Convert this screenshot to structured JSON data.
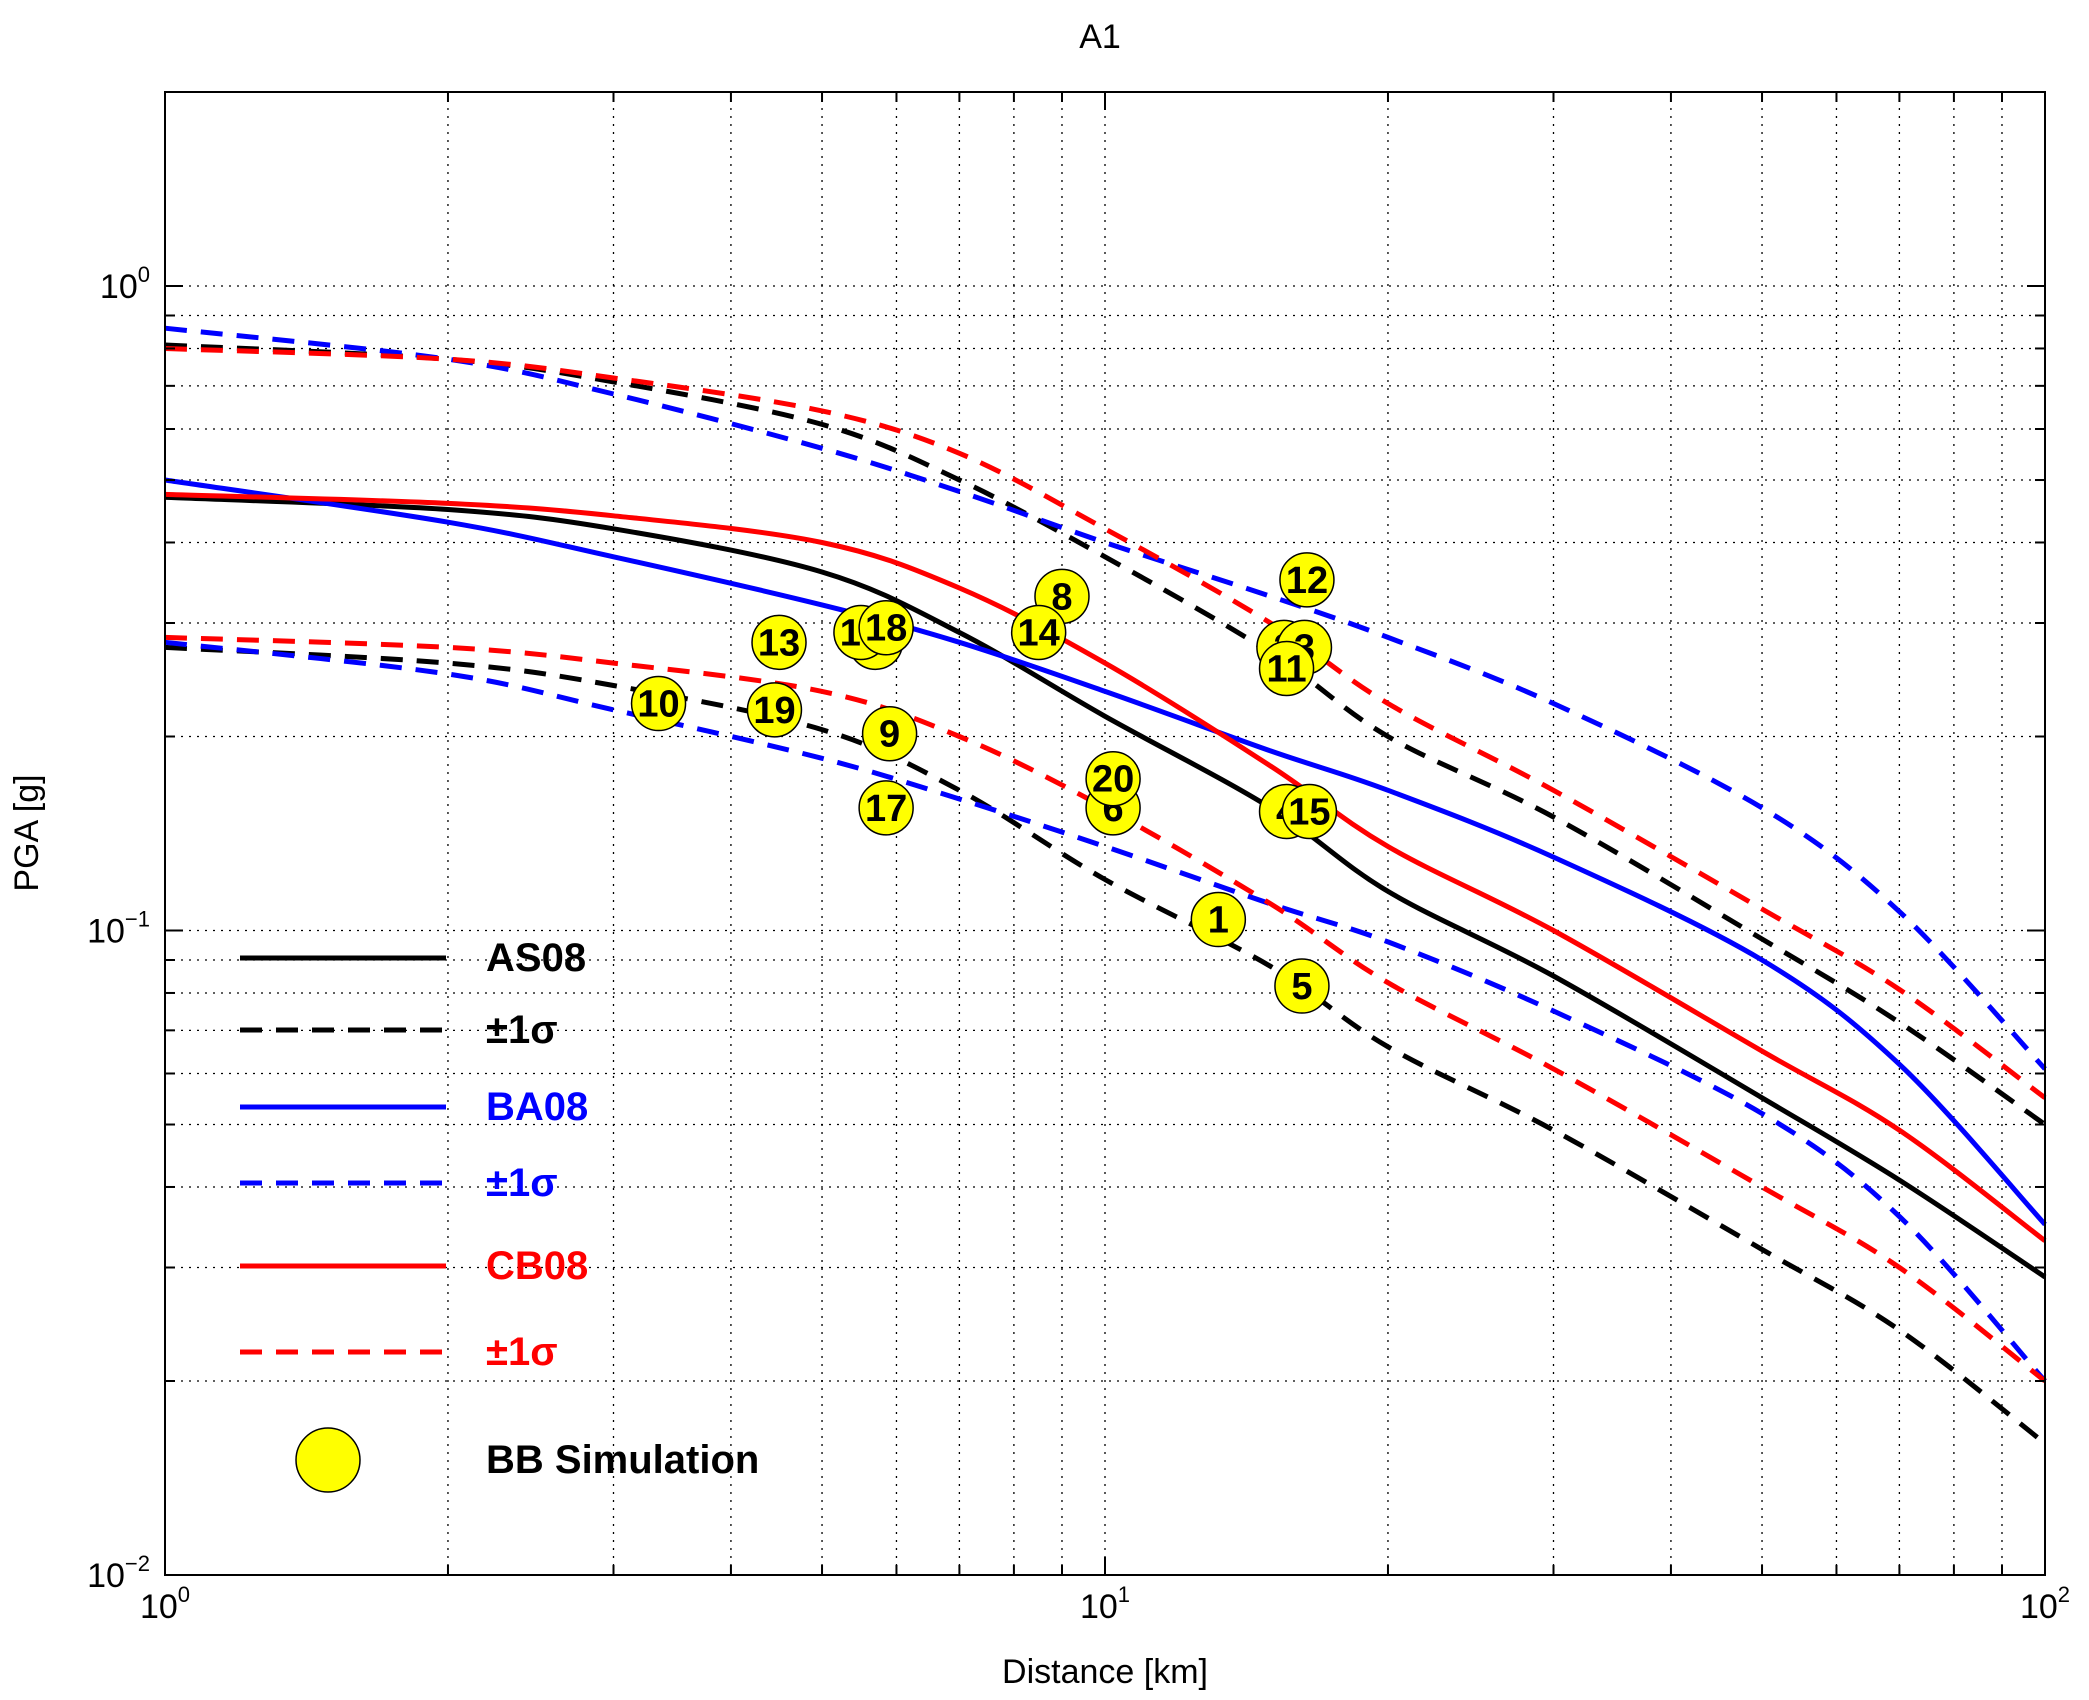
{
  "chart_data": {
    "type": "line",
    "title": "A1",
    "xlabel": "Distance [km]",
    "ylabel": "PGA [g]",
    "xscale": "log",
    "yscale": "log",
    "xlim": [
      1,
      100
    ],
    "ylim": [
      0.01,
      2
    ],
    "grid": true,
    "x_ticks": [
      {
        "base": "10",
        "exp": "0"
      },
      {
        "base": "10",
        "exp": "1"
      },
      {
        "base": "10",
        "exp": "2"
      }
    ],
    "y_ticks": [
      {
        "base": "10",
        "exp": "−2"
      },
      {
        "base": "10",
        "exp": "−1"
      },
      {
        "base": "10",
        "exp": "0"
      }
    ],
    "legend_position": "bottom-left",
    "legend": [
      {
        "label": "AS08",
        "color": "#000000",
        "style": "solid"
      },
      {
        "label": "±1σ",
        "color": "#000000",
        "style": "dashed"
      },
      {
        "label": "BA08",
        "color": "#0000ff",
        "style": "solid"
      },
      {
        "label": "±1σ",
        "color": "#0000ff",
        "style": "dashed"
      },
      {
        "label": "CB08",
        "color": "#ff0000",
        "style": "solid"
      },
      {
        "label": "±1σ",
        "color": "#ff0000",
        "style": "dashed"
      },
      {
        "label": "BB Simulation",
        "color": "#ffff00",
        "style": "marker"
      }
    ],
    "x": [
      1,
      2,
      3,
      5,
      7,
      10,
      15,
      20,
      30,
      50,
      70,
      100
    ],
    "series": [
      {
        "name": "AS08",
        "color": "#000000",
        "style": "solid",
        "values": [
          0.47,
          0.45,
          0.42,
          0.36,
          0.29,
          0.215,
          0.155,
          0.115,
          0.085,
          0.055,
          0.041,
          0.029
        ]
      },
      {
        "name": "±1σ",
        "color": "#000000",
        "style": "dashed",
        "values": [
          0.81,
          0.77,
          0.71,
          0.61,
          0.5,
          0.38,
          0.27,
          0.2,
          0.15,
          0.097,
          0.072,
          0.05
        ]
      },
      {
        "name": "±1σ",
        "color": "#000000",
        "style": "dashed",
        "values": [
          0.275,
          0.26,
          0.24,
          0.205,
          0.165,
          0.12,
          0.088,
          0.066,
          0.049,
          0.032,
          0.024,
          0.016
        ]
      },
      {
        "name": "BA08",
        "color": "#0000ff",
        "style": "solid",
        "values": [
          0.5,
          0.43,
          0.38,
          0.32,
          0.28,
          0.235,
          0.19,
          0.165,
          0.13,
          0.09,
          0.062,
          0.035
        ]
      },
      {
        "name": "±1σ",
        "color": "#0000ff",
        "style": "dashed",
        "values": [
          0.86,
          0.77,
          0.68,
          0.56,
          0.48,
          0.4,
          0.33,
          0.285,
          0.225,
          0.155,
          0.107,
          0.061
        ]
      },
      {
        "name": "±1σ",
        "color": "#0000ff",
        "style": "dashed",
        "values": [
          0.28,
          0.25,
          0.22,
          0.185,
          0.16,
          0.135,
          0.11,
          0.096,
          0.075,
          0.052,
          0.036,
          0.02
        ]
      },
      {
        "name": "CB08",
        "color": "#ff0000",
        "style": "solid",
        "values": [
          0.475,
          0.46,
          0.44,
          0.4,
          0.34,
          0.26,
          0.18,
          0.135,
          0.1,
          0.065,
          0.049,
          0.033
        ]
      },
      {
        "name": "±1σ",
        "color": "#ff0000",
        "style": "dashed",
        "values": [
          0.8,
          0.77,
          0.72,
          0.64,
          0.55,
          0.42,
          0.3,
          0.225,
          0.165,
          0.108,
          0.081,
          0.055
        ]
      },
      {
        "name": "±1σ",
        "color": "#ff0000",
        "style": "dashed",
        "values": [
          0.285,
          0.275,
          0.26,
          0.235,
          0.2,
          0.155,
          0.11,
          0.083,
          0.061,
          0.04,
          0.03,
          0.02
        ]
      }
    ],
    "simulation": {
      "name": "BB Simulation",
      "color": "#ffff00",
      "points": [
        {
          "label": "1",
          "x": 13.2,
          "y": 0.104
        },
        {
          "label": "2",
          "x": 15.5,
          "y": 0.275
        },
        {
          "label": "3",
          "x": 16.3,
          "y": 0.275
        },
        {
          "label": "4",
          "x": 15.6,
          "y": 0.153
        },
        {
          "label": "5",
          "x": 16.2,
          "y": 0.082
        },
        {
          "label": "6",
          "x": 10.2,
          "y": 0.155
        },
        {
          "label": "7",
          "x": 5.7,
          "y": 0.28
        },
        {
          "label": "8",
          "x": 9.0,
          "y": 0.33
        },
        {
          "label": "9",
          "x": 5.9,
          "y": 0.202
        },
        {
          "label": "10",
          "x": 3.35,
          "y": 0.225
        },
        {
          "label": "11",
          "x": 15.6,
          "y": 0.255
        },
        {
          "label": "12",
          "x": 16.4,
          "y": 0.35
        },
        {
          "label": "13",
          "x": 4.5,
          "y": 0.28
        },
        {
          "label": "14",
          "x": 8.5,
          "y": 0.29
        },
        {
          "label": "15",
          "x": 16.5,
          "y": 0.153
        },
        {
          "label": "16",
          "x": 5.5,
          "y": 0.29
        },
        {
          "label": "17",
          "x": 5.85,
          "y": 0.155
        },
        {
          "label": "18",
          "x": 5.85,
          "y": 0.295
        },
        {
          "label": "19",
          "x": 4.45,
          "y": 0.22
        },
        {
          "label": "20",
          "x": 10.2,
          "y": 0.172
        }
      ]
    }
  }
}
